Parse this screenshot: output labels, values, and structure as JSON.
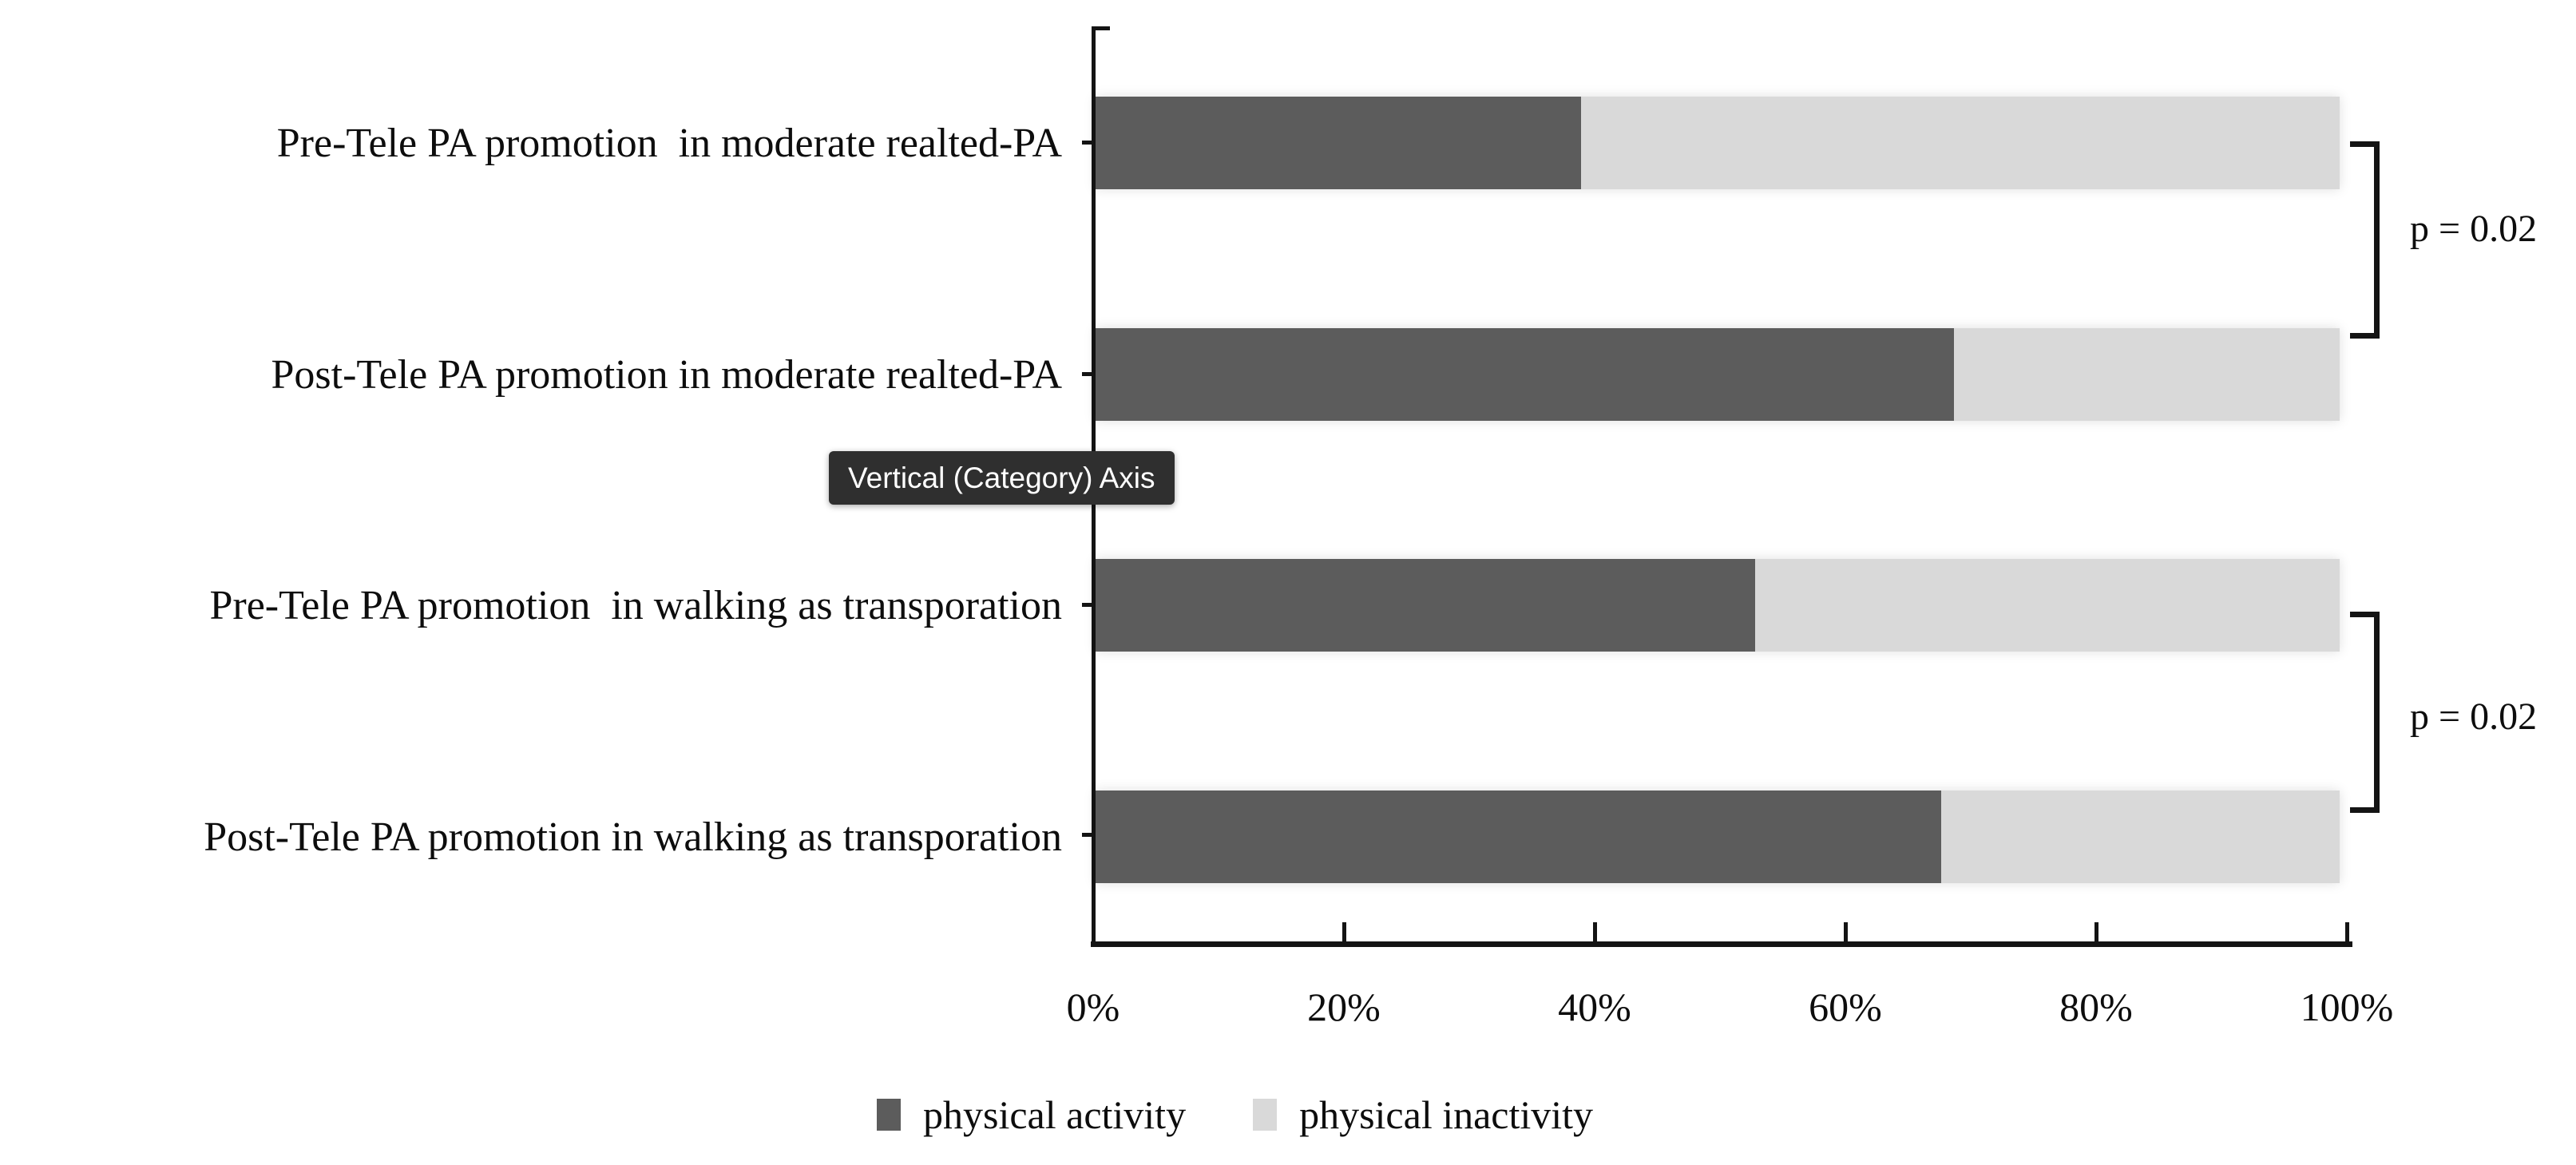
{
  "tooltip": {
    "text": "Vertical (Category) Axis",
    "bg_color": "#2F2F2F",
    "text_color": "#FFFFFF"
  },
  "chart_data": {
    "type": "bar",
    "orientation": "horizontal",
    "stacked": true,
    "grid": false,
    "legend_position": "bottom",
    "categories": [
      "Pre-Tele PA promotion  in moderate realted-PA",
      "Post-Tele PA promotion in moderate realted-PA",
      "Pre-Tele PA promotion  in walking as transporation",
      "Post-Tele PA promotion in walking as transporation"
    ],
    "series": [
      {
        "name": "physical activity",
        "color": "#5C5C5C",
        "values": [
          39,
          69,
          53,
          68
        ]
      },
      {
        "name": "physical inactivity",
        "color": "#D9D9D9",
        "values": [
          61,
          31,
          47,
          32
        ]
      }
    ],
    "x_axis": {
      "min": 0,
      "max": 100,
      "unit": "%",
      "tick_labels": [
        "0%",
        "20%",
        "40%",
        "60%",
        "80%",
        "100%"
      ]
    },
    "annotations": [
      {
        "label": "p = 0.02",
        "between": [
          "Pre-Tele PA promotion  in moderate realted-PA",
          "Post-Tele PA promotion in moderate realted-PA"
        ]
      },
      {
        "label": "p = 0.02",
        "between": [
          "Pre-Tele PA promotion  in walking as transporation",
          "Post-Tele PA promotion in walking as transporation"
        ]
      }
    ]
  }
}
